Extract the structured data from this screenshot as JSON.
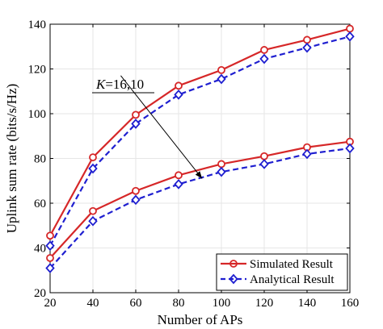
{
  "chart_data": {
    "type": "line",
    "title": "",
    "xlabel": "Number of APs",
    "ylabel": "Uplink sum rate (bits/s/Hz)",
    "x": [
      20,
      40,
      60,
      80,
      100,
      120,
      140,
      160
    ],
    "xlim": [
      20,
      160
    ],
    "ylim": [
      20,
      140
    ],
    "xticks": [
      "20",
      "40",
      "60",
      "80",
      "100",
      "120",
      "140",
      "160"
    ],
    "yticks": [
      "20",
      "40",
      "60",
      "80",
      "100",
      "120",
      "140"
    ],
    "grid": true,
    "legend_position": "bottom-right",
    "series": [
      {
        "name": "Simulated Result",
        "group": "K=16",
        "color": "#d62728",
        "line_style": "solid",
        "marker": "circle",
        "values": [
          45.5,
          80.5,
          99.5,
          112.5,
          119.5,
          128.5,
          133.0,
          138.0
        ]
      },
      {
        "name": "Analytical Result",
        "group": "K=16",
        "color": "#1f1fd0",
        "line_style": "dashed",
        "marker": "diamond",
        "values": [
          41.0,
          75.5,
          95.5,
          108.5,
          115.5,
          124.5,
          129.5,
          134.5
        ]
      },
      {
        "name": "Simulated Result",
        "group": "K=10",
        "color": "#d62728",
        "line_style": "solid",
        "marker": "circle",
        "values": [
          35.5,
          56.5,
          65.5,
          72.5,
          77.5,
          81.0,
          85.0,
          87.5
        ]
      },
      {
        "name": "Analytical Result",
        "group": "K=10",
        "color": "#1f1fd0",
        "line_style": "dashed",
        "marker": "diamond",
        "values": [
          31.0,
          52.0,
          61.5,
          68.5,
          74.0,
          77.5,
          82.0,
          84.5
        ]
      }
    ],
    "legend": [
      "Simulated Result",
      "Analytical Result"
    ],
    "annotation": {
      "k_letter": "K",
      "k_values": "=16,10",
      "arrow_from": [
        53,
        117
      ],
      "arrow_to": [
        91,
        71
      ]
    }
  }
}
